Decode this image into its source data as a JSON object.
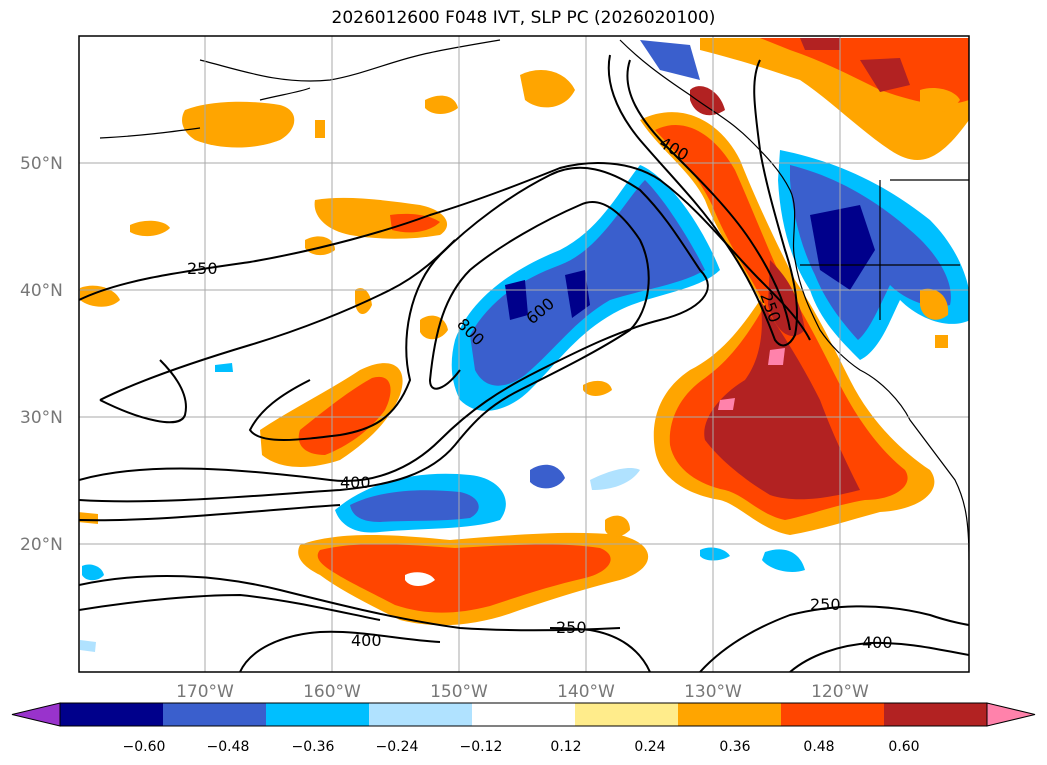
{
  "title": "2026012600 F048 IVT, SLP PC (2026020100)",
  "map": {
    "lat_labels": [
      "50°N",
      "40°N",
      "30°N",
      "20°N"
    ],
    "lon_labels": [
      "170°W",
      "160°W",
      "150°W",
      "140°W",
      "130°W",
      "120°W"
    ],
    "contour_labels": [
      "250",
      "400",
      "600",
      "800",
      "400",
      "250",
      "250",
      "400",
      "250",
      "400"
    ]
  },
  "colorbar": {
    "colors": [
      "#9933cc",
      "#00008b",
      "#3a5fcd",
      "#00bfff",
      "#b0e2ff",
      "#ffffff",
      "#ffec8b",
      "#ffa500",
      "#ff4500",
      "#b22222",
      "#ff82ab"
    ],
    "tick_labels": [
      "−0.60",
      "−0.48",
      "−0.36",
      "−0.24",
      "−0.12",
      "0.12",
      "0.24",
      "0.36",
      "0.48",
      "0.60"
    ]
  }
}
